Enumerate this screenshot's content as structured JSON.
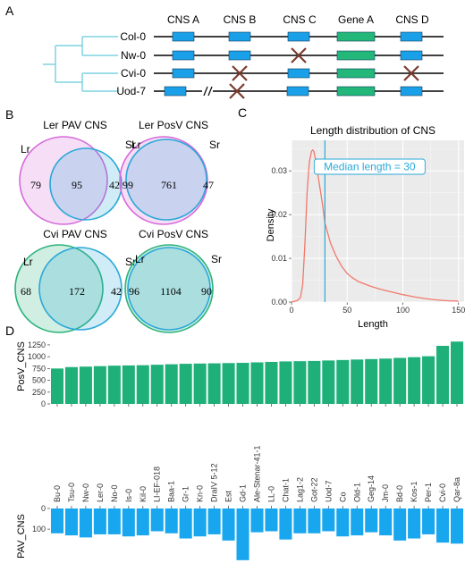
{
  "panel_a": {
    "letter": "A",
    "columns": [
      "CNS A",
      "CNS B",
      "CNS C",
      "Gene A",
      "CNS D"
    ],
    "rows": [
      {
        "name": "Col-0",
        "deleted": [],
        "gap": false
      },
      {
        "name": "Nw-0",
        "deleted": [
          "CNS C"
        ],
        "gap": false
      },
      {
        "name": "Cvi-0",
        "deleted": [
          "CNS B",
          "CNS D"
        ],
        "gap": false
      },
      {
        "name": "Uod-7",
        "deleted": [
          "CNS B"
        ],
        "gap": true
      }
    ],
    "colors": {
      "cns": "#1aa0e8",
      "gene": "#23b77a",
      "cross": "#7a3b2e",
      "tree": "#7fd3e0"
    }
  },
  "panel_b": {
    "letter": "B",
    "venns": [
      {
        "title": "Ler PAV CNS",
        "left_label": "Lr",
        "right_label": "Sr",
        "left_only": "79",
        "both": "95",
        "right_only": "42",
        "left_color": "#d66ad9",
        "right_color": "#2aa8d8"
      },
      {
        "title": "Ler PosV CNS",
        "left_label": "Lr",
        "right_label": "Sr",
        "left_only": "99",
        "both": "761",
        "right_only": "47",
        "left_color": "#d66ad9",
        "right_color": "#2aa8d8"
      },
      {
        "title": "Cvi PAV CNS",
        "left_label": "Lr",
        "right_label": "Sr",
        "left_only": "68",
        "both": "172",
        "right_only": "42",
        "left_color": "#2bb37a",
        "right_color": "#2aa8d8"
      },
      {
        "title": "Cvi PosV CNS",
        "left_label": "Lr",
        "right_label": "Sr",
        "left_only": "96",
        "both": "1104",
        "right_only": "90",
        "left_color": "#2bb37a",
        "right_color": "#2aa8d8"
      }
    ]
  },
  "panel_c": {
    "letter": "C",
    "chart_data": {
      "type": "line",
      "title": "Length distribution of CNS",
      "xlabel": "Length",
      "ylabel": "Density",
      "xlim": [
        0,
        155
      ],
      "ylim": [
        0,
        0.037
      ],
      "xticks": [
        0,
        50,
        100,
        150
      ],
      "yticks": [
        0.0,
        0.01,
        0.02,
        0.03
      ],
      "ytick_labels": [
        "0.00",
        "0.01",
        "0.02",
        "0.03"
      ],
      "grid": true,
      "x": [
        0,
        5,
        8,
        10,
        12,
        14,
        16,
        18,
        19,
        20,
        22,
        25,
        28,
        30,
        35,
        40,
        45,
        50,
        55,
        60,
        70,
        80,
        90,
        100,
        110,
        120,
        130,
        140,
        150
      ],
      "y": [
        0,
        0.0003,
        0.001,
        0.004,
        0.013,
        0.025,
        0.032,
        0.0345,
        0.0348,
        0.0345,
        0.032,
        0.027,
        0.022,
        0.018,
        0.0135,
        0.0105,
        0.0082,
        0.0065,
        0.0055,
        0.0047,
        0.0037,
        0.0029,
        0.0023,
        0.0017,
        0.0012,
        0.0008,
        0.0005,
        0.0003,
        0.0002
      ],
      "line_color": "#f0796b",
      "median": 30,
      "median_color": "#2aa8d8",
      "annotation": "Median length = 30"
    }
  },
  "panel_d": {
    "letter": "D",
    "chart_data": {
      "type": "bar",
      "categories": [
        "Bu-0",
        "Tsu-0",
        "Nw-0",
        "Ler-0",
        "No-0",
        "Is-0",
        "Kil-0",
        "LI-EF-018",
        "Baa-1",
        "Gr-1",
        "Kn-0",
        "DraIV 5-12",
        "Est",
        "Gd-1",
        "Ale-Stenar-41-1",
        "LL-0",
        "Chat-1",
        "Lag1-2",
        "Got-22",
        "Uod-7",
        "Co",
        "Old-1",
        "Geg-14",
        "Jm-0",
        "Bd-0",
        "Kos-1",
        "Per-1",
        "Cvi-0",
        "Qar-8a"
      ],
      "series": [
        {
          "name": "PosV_CNS",
          "values": [
            750,
            780,
            790,
            800,
            810,
            815,
            820,
            830,
            840,
            850,
            855,
            860,
            865,
            870,
            880,
            890,
            900,
            905,
            910,
            920,
            930,
            940,
            950,
            960,
            975,
            990,
            1010,
            1230,
            1320
          ],
          "color": "#1fb07a"
        },
        {
          "name": "PAV_CNS",
          "values": [
            120,
            130,
            140,
            125,
            125,
            135,
            130,
            110,
            120,
            145,
            135,
            125,
            155,
            250,
            115,
            110,
            150,
            120,
            120,
            110,
            135,
            130,
            115,
            130,
            155,
            145,
            125,
            165,
            170
          ],
          "color": "#18a6ee"
        }
      ],
      "top_ylabel": "PosV_CNS",
      "top_yticks": [
        0,
        250,
        500,
        750,
        1000,
        1250
      ],
      "top_ylim": [
        0,
        1400
      ],
      "bottom_ylabel": "PAV_CNS",
      "bottom_yticks": [
        0,
        100
      ],
      "bottom_ylim": [
        0,
        255
      ]
    }
  }
}
